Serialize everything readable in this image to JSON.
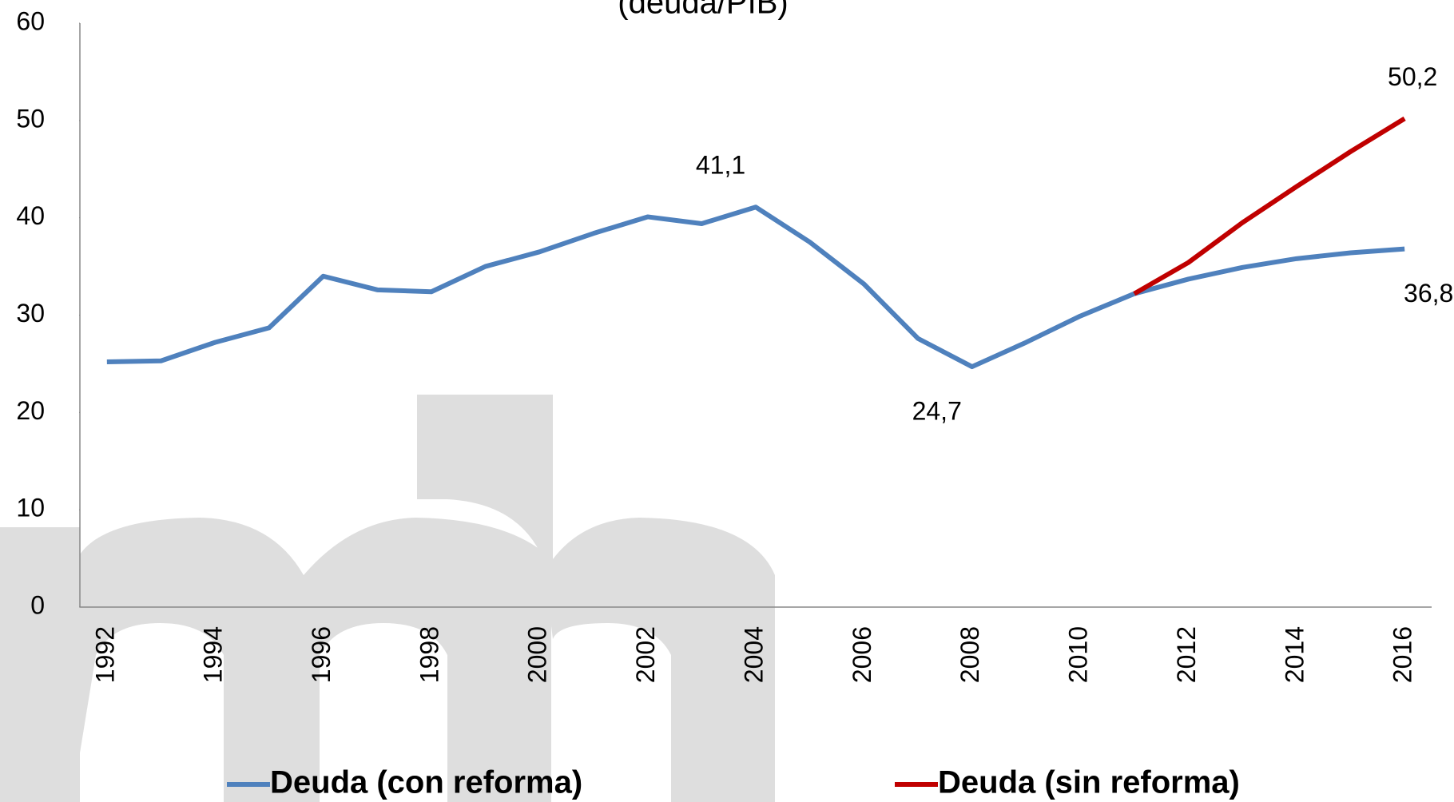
{
  "chart_data": {
    "type": "line",
    "title": "(deuda/PIB)",
    "categories": [
      "1992",
      null,
      "1994",
      null,
      "1996",
      null,
      "1998",
      null,
      "2000",
      null,
      "2002",
      null,
      "2004",
      null,
      "2006",
      null,
      "2008",
      null,
      "2010",
      null,
      "2012",
      null,
      "2014",
      null,
      "2016"
    ],
    "series": [
      {
        "name": "Deuda (con reforma)",
        "color": "#4f81bd",
        "values": [
          25.2,
          25.3,
          27.2,
          28.7,
          34.0,
          32.6,
          32.4,
          35.0,
          36.5,
          38.4,
          40.1,
          39.4,
          41.1,
          37.5,
          33.2,
          27.6,
          24.7,
          27.2,
          29.9,
          32.2,
          33.7,
          34.9,
          35.8,
          36.4,
          36.8
        ],
        "value_labels": [
          null,
          null,
          null,
          null,
          null,
          null,
          null,
          null,
          null,
          null,
          null,
          null,
          "41,1",
          null,
          null,
          null,
          "24,7",
          null,
          null,
          null,
          null,
          null,
          null,
          null,
          "36,8"
        ]
      },
      {
        "name": "Deuda (sin reforma)",
        "color": "#c00000",
        "values": [
          null,
          null,
          null,
          null,
          null,
          null,
          null,
          null,
          null,
          null,
          null,
          null,
          null,
          null,
          null,
          null,
          null,
          null,
          null,
          32.2,
          35.4,
          39.5,
          43.2,
          46.8,
          50.2
        ],
        "value_labels": [
          null,
          null,
          null,
          null,
          null,
          null,
          null,
          null,
          null,
          null,
          null,
          null,
          null,
          null,
          null,
          null,
          null,
          null,
          null,
          null,
          null,
          null,
          null,
          null,
          "50,2"
        ]
      }
    ],
    "ylim": [
      0,
      60
    ],
    "yticks": [
      0,
      10,
      20,
      30,
      40,
      50,
      60
    ],
    "legend": "bottom"
  }
}
